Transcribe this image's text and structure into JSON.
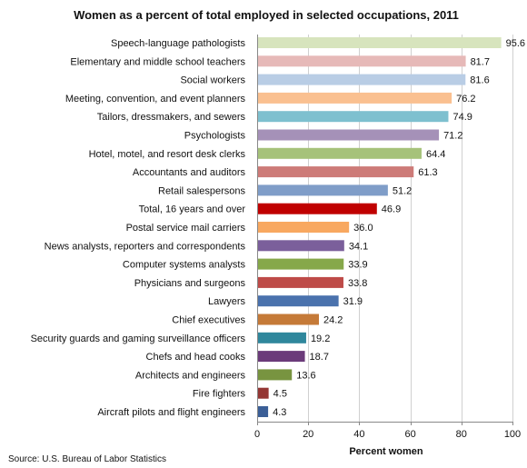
{
  "chart_data": {
    "type": "bar",
    "orientation": "horizontal",
    "title": "Women as a percent of total employed in selected occupations, 2011",
    "xlabel": "Percent women",
    "ylabel": "",
    "xlim": [
      0,
      100
    ],
    "xticks": [
      0,
      20,
      40,
      60,
      80,
      100
    ],
    "grid": "vertical gridlines",
    "legend": "none",
    "highlight_value_color": "#c00000",
    "source": "Source: U.S. Bureau of Labor Statistics",
    "categories": [
      "Speech-language pathologists",
      "Elementary and middle school teachers",
      "Social workers",
      "Meeting, convention, and event planners",
      "Tailors, dressmakers, and sewers",
      "Psychologists",
      "Hotel, motel, and resort desk clerks",
      "Accountants and auditors",
      "Retail salespersons",
      "Total, 16 years and over",
      "Postal service mail carriers",
      "News analysts,  reporters and correspondents",
      "Computer systems analysts",
      "Physicians and surgeons",
      "Lawyers",
      "Chief executives",
      "Security guards and gaming surveillance officers",
      "Chefs and head cooks",
      "Architects and engineers",
      "Fire fighters",
      "Aircraft pilots and flight engineers"
    ],
    "values": [
      95.6,
      81.7,
      81.6,
      76.2,
      74.9,
      71.2,
      64.4,
      61.3,
      51.2,
      46.9,
      36.0,
      34.1,
      33.9,
      33.8,
      31.9,
      24.2,
      19.2,
      18.7,
      13.6,
      4.5,
      4.3
    ],
    "value_labels": [
      "95.6",
      "81.7",
      "81.6",
      "76.2",
      "74.9",
      "71.2",
      "64.4",
      "61.3",
      "51.2",
      "46.9",
      "36.0",
      "34.1",
      "33.9",
      "33.8",
      "31.9",
      "24.2",
      "19.2",
      "18.7",
      "13.6",
      "4.5",
      "4.3"
    ],
    "colors": [
      "#d7e4bd",
      "#e6b9b8",
      "#b9cde5",
      "#fac090",
      "#7ec0cf",
      "#a591b8",
      "#a6c27a",
      "#cd7b78",
      "#7f9dc8",
      "#c00000",
      "#f8a860",
      "#7b5f9b",
      "#86a84a",
      "#be4b48",
      "#4a72ad",
      "#c57a38",
      "#2f879c",
      "#6b3b7a",
      "#789440",
      "#943634",
      "#3b5f97"
    ],
    "highlight_index": 9
  }
}
